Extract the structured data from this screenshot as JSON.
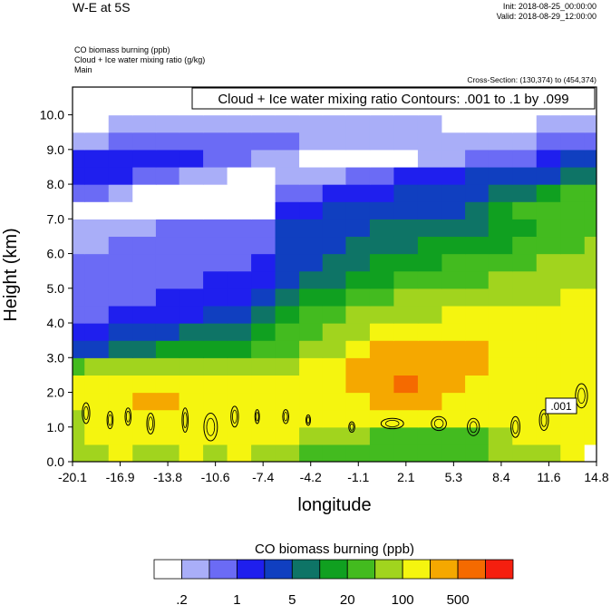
{
  "header": {
    "title": "W-E at 5S",
    "init": "Init: 2018-08-25_00:00:00",
    "valid": "Valid: 2018-08-29_12:00:00",
    "field_lines": [
      "CO biomass burning   (ppb)",
      "Cloud + Ice water mixing ratio   (g/kg)",
      "Main"
    ],
    "cross_section": "Cross-Section: (130,374) to (454,374)"
  },
  "chart_data": {
    "type": "heatmap",
    "xlabel": "longitude",
    "ylabel": "Height (km)",
    "xlim": [
      -20.1,
      14.8
    ],
    "ylim": [
      0.0,
      10.8
    ],
    "x_ticks": [
      "-20.1",
      "-16.9",
      "-13.8",
      "-10.6",
      "-7.4",
      "-4.2",
      "-1.1",
      "2.1",
      "5.3",
      "8.4",
      "11.6",
      "14.8"
    ],
    "y_ticks": [
      "0.0",
      "1.0",
      "2.0",
      "3.0",
      "4.0",
      "5.0",
      "6.0",
      "7.0",
      "8.0",
      "9.0",
      "10.0"
    ],
    "contour_label": "Cloud + Ice water mixing ratio Contours: .001 to .1 by .099",
    "contour_inline_label": ".001",
    "colorbar": {
      "title": "CO biomass burning  (ppb)",
      "colors": [
        "#ffffff",
        "#a9aef8",
        "#6b6bf5",
        "#1f1fee",
        "#103fc0",
        "#0e7466",
        "#10a020",
        "#43bb1f",
        "#a1d41e",
        "#f5f50f",
        "#f5a800",
        "#f56a00",
        "#f51f0f"
      ],
      "labels": [
        ".2",
        "1",
        "5",
        "20",
        "100",
        "500"
      ]
    },
    "level_colors": [
      "#ffffff",
      "#a9aef8",
      "#6b6bf5",
      "#1f1fee",
      "#103fc0",
      "#0e7466",
      "#10a020",
      "#43bb1f",
      "#a1d41e",
      "#f5f50f",
      "#f5a800",
      "#f56a00",
      "#f51f0f"
    ],
    "x": [
      -20.1,
      -18.5,
      -16.9,
      -15.3,
      -13.8,
      -12.2,
      -10.6,
      -9.0,
      -7.4,
      -5.8,
      -4.2,
      -2.7,
      -1.1,
      0.5,
      2.1,
      3.7,
      5.3,
      6.8,
      8.4,
      10.0,
      11.6,
      13.2,
      14.8
    ],
    "y": [
      0.25,
      0.75,
      1.25,
      1.75,
      2.25,
      2.75,
      3.25,
      3.75,
      4.25,
      4.75,
      5.25,
      5.75,
      6.25,
      6.75,
      7.25,
      7.75,
      8.25,
      8.75,
      9.25,
      9.75,
      10.25,
      10.75
    ],
    "z": [
      [
        8,
        8,
        9,
        8,
        8,
        9,
        8,
        9,
        8,
        8,
        7,
        7,
        7,
        7,
        7,
        7,
        7,
        7,
        8,
        8,
        8,
        9,
        0
      ],
      [
        8,
        9,
        9,
        9,
        9,
        9,
        9,
        9,
        9,
        9,
        8,
        8,
        8,
        7,
        7,
        7,
        7,
        7,
        8,
        9,
        9,
        9,
        9
      ],
      [
        8,
        9,
        9,
        9,
        9,
        9,
        9,
        9,
        9,
        9,
        9,
        9,
        9,
        9,
        9,
        9,
        9,
        9,
        9,
        9,
        9,
        9,
        9
      ],
      [
        9,
        9,
        9,
        10,
        10,
        9,
        9,
        9,
        9,
        9,
        9,
        9,
        9,
        10,
        10,
        10,
        9,
        9,
        9,
        9,
        9,
        9,
        9
      ],
      [
        9,
        9,
        9,
        9,
        9,
        9,
        9,
        9,
        9,
        9,
        9,
        9,
        10,
        10,
        11,
        10,
        10,
        9,
        9,
        9,
        9,
        9,
        9
      ],
      [
        7,
        8,
        8,
        8,
        8,
        8,
        8,
        8,
        8,
        8,
        9,
        9,
        10,
        10,
        10,
        10,
        10,
        10,
        9,
        9,
        9,
        9,
        9
      ],
      [
        4,
        4,
        5,
        5,
        6,
        6,
        6,
        6,
        7,
        7,
        8,
        8,
        9,
        10,
        10,
        10,
        10,
        10,
        9,
        9,
        9,
        9,
        9
      ],
      [
        3,
        3,
        4,
        4,
        4,
        5,
        5,
        5,
        6,
        7,
        7,
        8,
        8,
        9,
        9,
        9,
        9,
        9,
        9,
        9,
        9,
        9,
        9
      ],
      [
        2,
        2,
        3,
        3,
        3,
        3,
        4,
        4,
        5,
        6,
        7,
        7,
        8,
        8,
        8,
        8,
        9,
        9,
        9,
        9,
        9,
        9,
        9
      ],
      [
        2,
        2,
        2,
        2,
        3,
        3,
        3,
        3,
        4,
        5,
        6,
        6,
        7,
        7,
        8,
        8,
        8,
        8,
        8,
        8,
        8,
        9,
        9
      ],
      [
        2,
        2,
        2,
        2,
        2,
        2,
        3,
        3,
        3,
        4,
        5,
        5,
        6,
        6,
        7,
        7,
        7,
        7,
        8,
        8,
        8,
        8,
        8
      ],
      [
        2,
        2,
        2,
        2,
        2,
        2,
        2,
        2,
        3,
        4,
        4,
        5,
        5,
        6,
        6,
        6,
        7,
        7,
        7,
        7,
        8,
        8,
        8
      ],
      [
        1,
        1,
        2,
        2,
        2,
        2,
        2,
        2,
        2,
        4,
        4,
        4,
        5,
        5,
        5,
        6,
        6,
        6,
        6,
        7,
        7,
        7,
        8
      ],
      [
        1,
        1,
        1,
        1,
        2,
        2,
        2,
        2,
        2,
        4,
        4,
        4,
        4,
        5,
        5,
        5,
        5,
        5,
        6,
        6,
        7,
        7,
        7
      ],
      [
        0,
        0,
        0,
        0,
        0,
        0,
        0,
        0,
        0,
        3,
        3,
        4,
        4,
        4,
        4,
        4,
        4,
        5,
        6,
        7,
        7,
        7,
        7
      ],
      [
        2,
        2,
        1,
        0,
        0,
        0,
        0,
        0,
        0,
        2,
        2,
        3,
        3,
        3,
        4,
        4,
        4,
        4,
        5,
        5,
        6,
        7,
        7
      ],
      [
        3,
        3,
        3,
        2,
        2,
        1,
        1,
        0,
        0,
        1,
        1,
        1,
        2,
        2,
        3,
        3,
        3,
        4,
        4,
        4,
        4,
        5,
        5
      ],
      [
        3,
        3,
        3,
        3,
        3,
        3,
        2,
        2,
        1,
        1,
        0,
        0,
        0,
        0,
        0,
        1,
        1,
        2,
        2,
        2,
        3,
        4,
        4
      ],
      [
        1,
        1,
        2,
        2,
        2,
        2,
        2,
        2,
        2,
        2,
        1,
        1,
        1,
        1,
        1,
        1,
        1,
        1,
        1,
        1,
        2,
        2,
        2
      ],
      [
        0,
        0,
        1,
        1,
        1,
        1,
        1,
        1,
        1,
        1,
        1,
        1,
        1,
        1,
        1,
        1,
        0,
        0,
        0,
        0,
        1,
        1,
        1
      ],
      [
        0,
        0,
        0,
        0,
        0,
        0,
        0,
        0,
        0,
        0,
        0,
        0,
        0,
        0,
        0,
        0,
        0,
        0,
        0,
        0,
        0,
        0,
        0
      ],
      [
        0,
        0,
        0,
        0,
        0,
        0,
        0,
        0,
        0,
        0,
        0,
        0,
        0,
        0,
        0,
        0,
        0,
        0,
        0,
        0,
        0,
        0,
        0
      ]
    ],
    "contours": [
      {
        "x": -19.2,
        "y": 1.4,
        "rx": 0.5,
        "ry": 0.6
      },
      {
        "x": -17.6,
        "y": 1.2,
        "rx": 0.4,
        "ry": 0.5
      },
      {
        "x": -16.4,
        "y": 1.3,
        "rx": 0.4,
        "ry": 0.5
      },
      {
        "x": -14.9,
        "y": 1.1,
        "rx": 0.5,
        "ry": 0.6
      },
      {
        "x": -12.6,
        "y": 1.2,
        "rx": 0.4,
        "ry": 0.7
      },
      {
        "x": -10.9,
        "y": 1.0,
        "rx": 0.9,
        "ry": 0.8
      },
      {
        "x": -9.3,
        "y": 1.3,
        "rx": 0.5,
        "ry": 0.6
      },
      {
        "x": -7.8,
        "y": 1.3,
        "rx": 0.3,
        "ry": 0.4
      },
      {
        "x": -5.9,
        "y": 1.3,
        "rx": 0.4,
        "ry": 0.4
      },
      {
        "x": -4.4,
        "y": 1.2,
        "rx": 0.3,
        "ry": 0.3
      },
      {
        "x": -1.5,
        "y": 1.0,
        "rx": 0.4,
        "ry": 0.3
      },
      {
        "x": 1.2,
        "y": 1.1,
        "rx": 1.5,
        "ry": 0.3
      },
      {
        "x": 4.3,
        "y": 1.1,
        "rx": 1.0,
        "ry": 0.4
      },
      {
        "x": 6.6,
        "y": 1.0,
        "rx": 0.8,
        "ry": 0.5
      },
      {
        "x": 9.4,
        "y": 1.0,
        "rx": 0.6,
        "ry": 0.6
      },
      {
        "x": 11.3,
        "y": 1.2,
        "rx": 0.6,
        "ry": 0.6
      },
      {
        "x": 13.8,
        "y": 1.9,
        "rx": 0.8,
        "ry": 0.7
      }
    ]
  }
}
